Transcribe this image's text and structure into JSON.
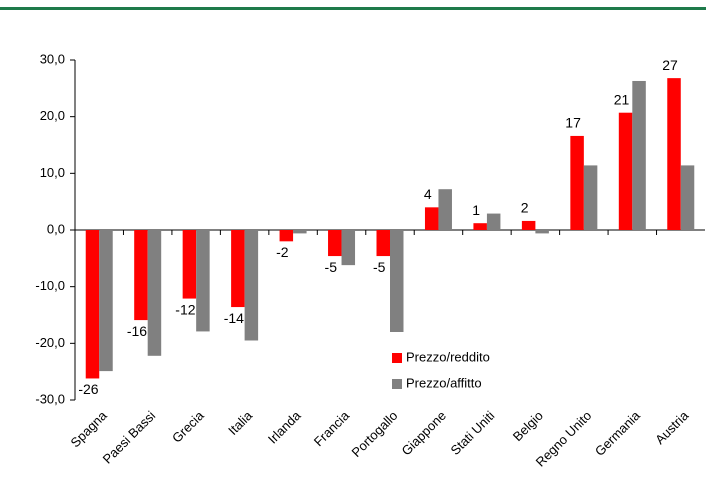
{
  "chart_data": {
    "type": "bar",
    "categories": [
      "Spagna",
      "Paesi Bassi",
      "Grecia",
      "Italia",
      "Irlanda",
      "Francia",
      "Portogallo",
      "Giappone",
      "Stati Uniti",
      "Belgio",
      "Regno Unito",
      "Germania",
      "Austria"
    ],
    "series": [
      {
        "name": "Prezzo/reddito",
        "color": "#ff0000",
        "values": [
          -26.2,
          -15.9,
          -12.1,
          -13.6,
          -2.0,
          -4.6,
          -4.6,
          4.0,
          1.2,
          1.6,
          16.6,
          20.7,
          26.8
        ],
        "value_labels": [
          "-26",
          "-16",
          "-12",
          "-14",
          "-2",
          "-5",
          "-5",
          "4",
          "1",
          "2",
          "17",
          "21",
          "27"
        ]
      },
      {
        "name": "Prezzo/affitto",
        "color": "#808080",
        "values": [
          -24.9,
          -22.2,
          -17.9,
          -19.5,
          -0.6,
          -6.2,
          -18.0,
          7.2,
          2.9,
          -0.6,
          11.4,
          26.3,
          11.4
        ]
      }
    ],
    "ylim": [
      -30,
      30
    ],
    "yticks": [
      {
        "value": -30,
        "label": "-30,0"
      },
      {
        "value": -20,
        "label": "-20,0"
      },
      {
        "value": -10,
        "label": "-10,0"
      },
      {
        "value": 0,
        "label": "0,0"
      },
      {
        "value": 10,
        "label": "10,0"
      },
      {
        "value": 20,
        "label": "20,0"
      },
      {
        "value": 30,
        "label": "30,0"
      }
    ]
  }
}
